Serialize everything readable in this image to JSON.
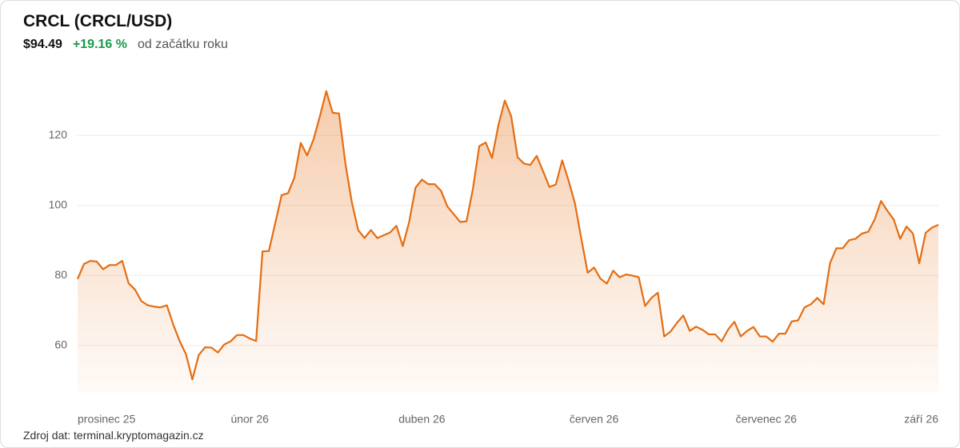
{
  "chart_data": {
    "type": "area",
    "title": "CRCL (CRCL/USD)",
    "price": "$94.49",
    "change": "+19.16 %",
    "period": "od začátku roku",
    "source": "Zdroj dat: terminal.kryptomagazin.cz",
    "color": "#e46d12",
    "grid": true,
    "ylim": [
      46.5,
      136
    ],
    "yticks": [
      60,
      80,
      100,
      120
    ],
    "categories": [
      "prosinec 25",
      null,
      null,
      null,
      null,
      null,
      null,
      null,
      null,
      null,
      null,
      null,
      null,
      null,
      null,
      null,
      null,
      null,
      null,
      null,
      null,
      null,
      null,
      null,
      null,
      null,
      null,
      "únor 26",
      null,
      null,
      null,
      null,
      null,
      null,
      null,
      null,
      null,
      null,
      null,
      null,
      null,
      null,
      null,
      null,
      null,
      null,
      null,
      null,
      null,
      null,
      null,
      null,
      null,
      null,
      "duben 26",
      null,
      null,
      null,
      null,
      null,
      null,
      null,
      null,
      null,
      null,
      null,
      null,
      null,
      null,
      null,
      null,
      null,
      null,
      null,
      null,
      null,
      null,
      null,
      null,
      null,
      null,
      "červen 26",
      null,
      null,
      null,
      null,
      null,
      null,
      null,
      null,
      null,
      null,
      null,
      null,
      null,
      null,
      null,
      null,
      null,
      null,
      null,
      null,
      null,
      null,
      null,
      null,
      null,
      null,
      "červenec 26",
      null,
      null,
      null,
      null,
      null,
      null,
      null,
      null,
      null,
      null,
      null,
      null,
      null,
      null,
      null,
      null,
      null,
      null,
      null,
      null,
      null,
      null,
      null,
      null,
      null,
      null,
      "září 26"
    ],
    "values": [
      79,
      83.3,
      84.2,
      84,
      81.8,
      83,
      83,
      84.2,
      77.8,
      76,
      72.7,
      71.5,
      71.1,
      70.9,
      71.5,
      66,
      61.3,
      57.5,
      50.3,
      57.3,
      59.5,
      59.4,
      58,
      60.3,
      61.2,
      63,
      63,
      62,
      61.3,
      86.9,
      87,
      95,
      103,
      103.5,
      108,
      117.9,
      114.3,
      118.9,
      125.5,
      132.7,
      126.5,
      126.3,
      112,
      101,
      93,
      90.7,
      93,
      90.7,
      91.5,
      92.3,
      94.2,
      88.4,
      95.3,
      105.1,
      107.4,
      106.1,
      106.1,
      104.2,
      99.7,
      97.5,
      95.3,
      95.5,
      104.8,
      117,
      118,
      113.6,
      123,
      130,
      125.5,
      113.8,
      112,
      111.6,
      114.2,
      109.8,
      105.3,
      106,
      112.9,
      107.1,
      100.6,
      90.5,
      80.8,
      82.3,
      79.1,
      77.7,
      81.4,
      79.5,
      80.3,
      80,
      79.5,
      71.3,
      73.6,
      75.1,
      62.6,
      64,
      66.5,
      68.6,
      64.2,
      65.4,
      64.5,
      63.2,
      63.2,
      61.2,
      64.5,
      66.8,
      62.6,
      64.2,
      65.3,
      62.6,
      62.6,
      61.1,
      63.4,
      63.4,
      66.9,
      67.2,
      70.9,
      71.8,
      73.6,
      71.8,
      83.5,
      87.8,
      87.8,
      90.1,
      90.5,
      92,
      92.5,
      96,
      101.3,
      98.5,
      96,
      90.5,
      94,
      92,
      83.5,
      92.2,
      93.7,
      94.49
    ]
  }
}
